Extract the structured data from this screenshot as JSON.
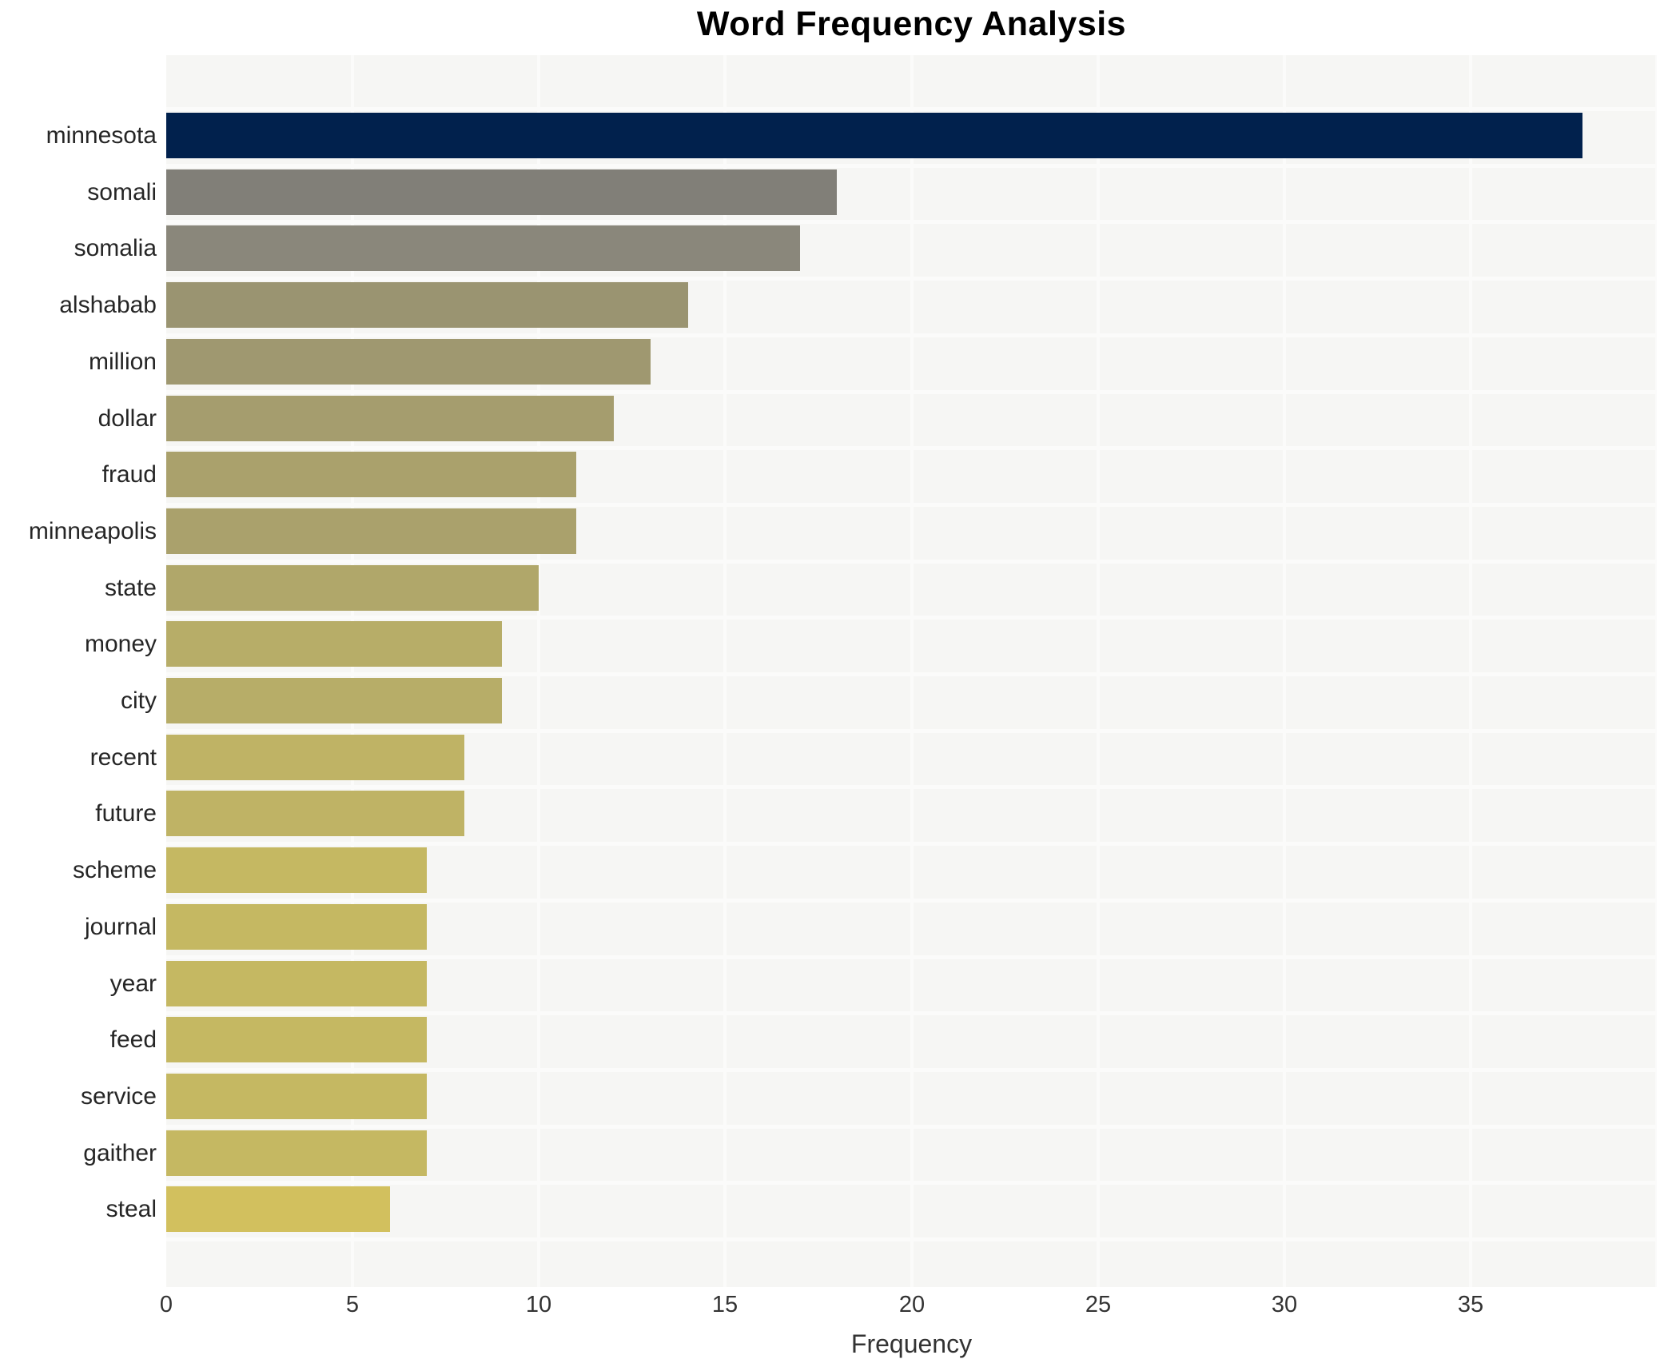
{
  "chart_data": {
    "type": "bar",
    "orientation": "horizontal",
    "title": "Word Frequency Analysis",
    "xlabel": "Frequency",
    "ylabel": "",
    "xlim": [
      0,
      40
    ],
    "xticks": [
      0,
      5,
      10,
      15,
      20,
      25,
      30,
      35
    ],
    "grid": true,
    "legend": "none",
    "categories": [
      "minnesota",
      "somali",
      "somalia",
      "alshabab",
      "million",
      "dollar",
      "fraud",
      "minneapolis",
      "state",
      "money",
      "city",
      "recent",
      "future",
      "scheme",
      "journal",
      "year",
      "feed",
      "service",
      "gaither",
      "steal"
    ],
    "values": [
      38,
      18,
      17,
      14,
      13,
      12,
      11,
      11,
      10,
      9,
      9,
      8,
      8,
      7,
      7,
      7,
      7,
      7,
      7,
      6
    ],
    "bar_colors": [
      "#01214d",
      "#817f78",
      "#8a877b",
      "#9a9471",
      "#9f9870",
      "#a59d6e",
      "#aaa16c",
      "#aaa16c",
      "#b0a76a",
      "#b7ad68",
      "#b7ad68",
      "#bfb365",
      "#bfb365",
      "#c5b862",
      "#c5b862",
      "#c5b862",
      "#c5b862",
      "#c5b862",
      "#c5b862",
      "#d2c05e"
    ],
    "colors": {
      "plot_background": "#f6f6f4",
      "page_background": "#ffffff",
      "gridline": "#fbfbfa",
      "title_text": "#000000",
      "tick_text": "#333333",
      "category_text": "#262626"
    }
  }
}
